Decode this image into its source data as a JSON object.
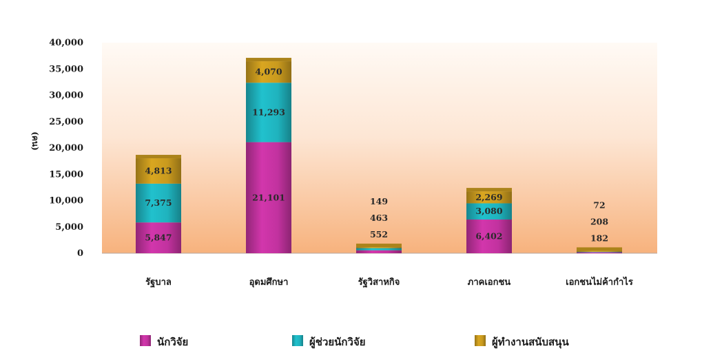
{
  "chart_data": {
    "type": "bar",
    "stacked": true,
    "ylabel": "(คน)",
    "ylim": [
      0,
      40000
    ],
    "yticks": [
      "40,000",
      "35,000",
      "30,000",
      "25,000",
      "20,000",
      "15,000",
      "10,000",
      "5,000",
      "0"
    ],
    "categories": [
      "รัฐบาล",
      "อุดมศึกษา",
      "รัฐวิสาหกิจ",
      "ภาคเอกชน",
      "เอกชนไม่ค้ากำไร"
    ],
    "series": [
      {
        "name": "นักวิจัย",
        "color": "#c2329f",
        "values": [
          5847,
          21101,
          552,
          6402,
          182
        ],
        "labels": [
          "5,847",
          "21,101",
          "552",
          "6,402",
          "182"
        ]
      },
      {
        "name": "ผู้ช่วยนักวิจัย",
        "color": "#1fb3be",
        "values": [
          7375,
          11293,
          463,
          3080,
          208
        ],
        "labels": [
          "7,375",
          "11,293",
          "463",
          "3,080",
          "208"
        ]
      },
      {
        "name": "ผู้ทำงานสนับสนุน",
        "color": "#c99a1e",
        "values": [
          4813,
          4070,
          149,
          2269,
          72
        ],
        "labels": [
          "4,813",
          "4,070",
          "149",
          "2,269",
          "72"
        ]
      }
    ],
    "grid": false,
    "legend_position": "bottom"
  }
}
